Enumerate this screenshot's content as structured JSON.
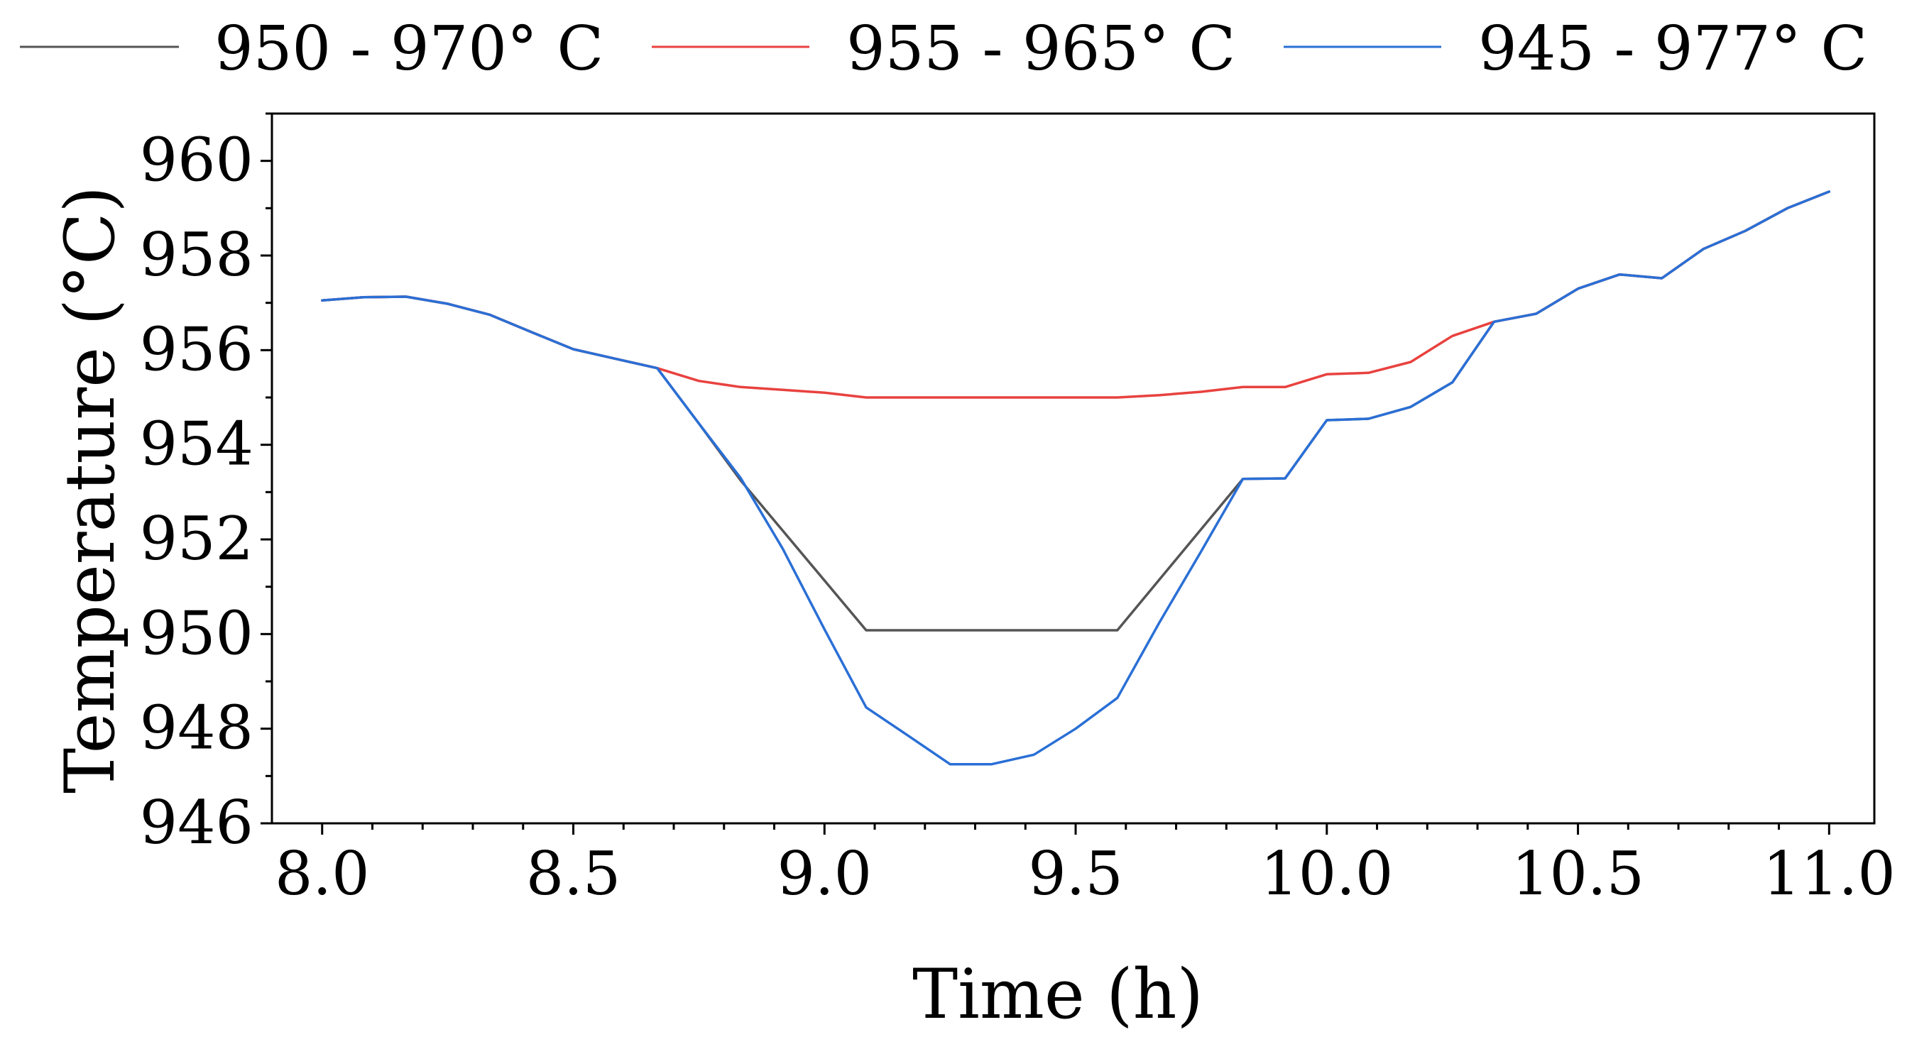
{
  "chart_data": {
    "type": "line",
    "title": "",
    "xlabel": "Time (h)",
    "ylabel": "Temperature (°C)",
    "xlim": [
      7.9,
      11.09
    ],
    "ylim": [
      946,
      961
    ],
    "xticks": [
      8.0,
      8.5,
      9.0,
      9.5,
      10.0,
      10.5,
      11.0
    ],
    "xtick_labels": [
      "8.0",
      "8.5",
      "9.0",
      "9.5",
      "10.0",
      "10.5",
      "11.0"
    ],
    "yticks": [
      946,
      948,
      950,
      952,
      954,
      956,
      958,
      960
    ],
    "ytick_labels": [
      "946",
      "948",
      "950",
      "952",
      "954",
      "956",
      "958",
      "960"
    ],
    "legend_position": "top",
    "grid": false,
    "series": [
      {
        "name": "950 - 970° C",
        "color": "#555555",
        "x": [
          8.0,
          8.083,
          8.167,
          8.25,
          8.333,
          8.417,
          8.5,
          8.583,
          8.667,
          8.75,
          8.833,
          9.083,
          9.583,
          9.833,
          9.917,
          10.0,
          10.083,
          10.167,
          10.25,
          10.333,
          10.417,
          10.5,
          10.583,
          10.667,
          10.75,
          10.833,
          10.917,
          11.0
        ],
        "values": [
          957.05,
          957.12,
          957.13,
          956.98,
          956.75,
          956.38,
          956.02,
          955.82,
          955.62,
          954.45,
          953.25,
          950.08,
          950.08,
          953.28,
          953.29,
          954.52,
          954.55,
          954.8,
          955.32,
          956.6,
          956.77,
          957.3,
          957.6,
          957.52,
          958.14,
          958.52,
          959.0,
          959.35
        ]
      },
      {
        "name": "955 - 965° C",
        "color": "#e8423f",
        "x": [
          8.0,
          8.083,
          8.167,
          8.25,
          8.333,
          8.417,
          8.5,
          8.583,
          8.667,
          8.75,
          8.833,
          8.917,
          9.0,
          9.083,
          9.167,
          9.25,
          9.333,
          9.417,
          9.5,
          9.583,
          9.667,
          9.75,
          9.833,
          9.917,
          10.0,
          10.083,
          10.167,
          10.25,
          10.333,
          10.417,
          10.5,
          10.583,
          10.667,
          10.75,
          10.833,
          10.917,
          11.0
        ],
        "values": [
          957.05,
          957.12,
          957.13,
          956.98,
          956.75,
          956.38,
          956.02,
          955.82,
          955.62,
          955.35,
          955.22,
          955.16,
          955.1,
          955.0,
          955.0,
          955.0,
          955.0,
          955.0,
          955.0,
          955.0,
          955.05,
          955.12,
          955.22,
          955.22,
          955.49,
          955.52,
          955.75,
          956.3,
          956.6,
          956.77,
          957.3,
          957.6,
          957.52,
          958.14,
          958.52,
          959.0,
          959.35
        ]
      },
      {
        "name": "945 - 977° C",
        "color": "#2a6fd6",
        "x": [
          8.0,
          8.083,
          8.167,
          8.25,
          8.333,
          8.417,
          8.5,
          8.583,
          8.667,
          8.75,
          8.833,
          8.917,
          9.0,
          9.083,
          9.167,
          9.25,
          9.333,
          9.417,
          9.5,
          9.583,
          9.667,
          9.75,
          9.833,
          9.917,
          10.0,
          10.083,
          10.167,
          10.25,
          10.333,
          10.417,
          10.5,
          10.583,
          10.667,
          10.75,
          10.833,
          10.917,
          11.0
        ],
        "values": [
          957.05,
          957.12,
          957.13,
          956.98,
          956.75,
          956.38,
          956.02,
          955.82,
          955.62,
          954.45,
          953.3,
          951.8,
          950.1,
          948.45,
          947.85,
          947.25,
          947.25,
          947.45,
          948.0,
          948.65,
          950.25,
          951.75,
          953.28,
          953.29,
          954.52,
          954.55,
          954.8,
          955.32,
          956.6,
          956.77,
          957.3,
          957.6,
          957.52,
          958.14,
          958.52,
          959.0,
          959.35
        ]
      }
    ]
  }
}
